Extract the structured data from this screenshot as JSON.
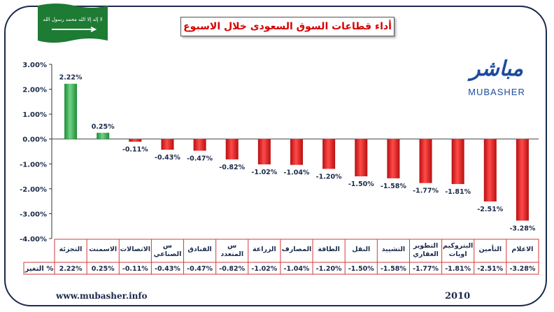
{
  "title": "أداء قطاعات السوق السعودى خلال الاسبوع",
  "brand": {
    "arabic": "مباشر",
    "english": "MUBASHER"
  },
  "flag": {
    "script": "لا إله إلا الله محمد رسول الله",
    "color": "#1d7b33"
  },
  "footer": {
    "website": "www.mubasher.info",
    "year": "2010"
  },
  "table": {
    "row_header": "التغير %"
  },
  "colors": {
    "positive": "#2fa84a",
    "negative": "#e11b1b",
    "title": "#d60000"
  },
  "chart_data": {
    "type": "bar",
    "categories": [
      "التجزئة",
      "الاسمنت",
      "الاتصالات",
      "س الصناعي",
      "الفنادق",
      "س المتعدد",
      "الزراعة",
      "المصارف",
      "الطاقة",
      "النقل",
      "التشييد",
      "التطوير العقاري",
      "البتروكيماويات",
      "التأمين",
      "الاعلام"
    ],
    "category_lines": [
      [
        "التجزئة"
      ],
      [
        "الاسمنت"
      ],
      [
        "الاتصالات"
      ],
      [
        "س",
        "الصناعي"
      ],
      [
        "الفنادق"
      ],
      [
        "س",
        "المتعدد"
      ],
      [
        "الزراعة"
      ],
      [
        "المصارف"
      ],
      [
        "الطاقة"
      ],
      [
        "النقل"
      ],
      [
        "التشييد"
      ],
      [
        "التطوير",
        "العقاري"
      ],
      [
        "البتروكيم",
        "اويات"
      ],
      [
        "التأمين"
      ],
      [
        "الاعلام"
      ]
    ],
    "values": [
      2.22,
      0.25,
      -0.11,
      -0.43,
      -0.47,
      -0.82,
      -1.02,
      -1.04,
      -1.2,
      -1.5,
      -1.58,
      -1.77,
      -1.81,
      -2.51,
      -3.28
    ],
    "value_labels": [
      "2.22%",
      "0.25%",
      "-0.11%",
      "-0.43%",
      "-0.47%",
      "-0.82%",
      "-1.02%",
      "-1.04%",
      "-1.20%",
      "-1.50%",
      "-1.58%",
      "-1.77%",
      "-1.81%",
      "-2.51%",
      "-3.28%"
    ],
    "yticks": [
      3,
      2,
      1,
      0,
      -1,
      -2,
      -3,
      -4
    ],
    "ytick_labels": [
      "3.00%",
      "2.00%",
      "1.00%",
      "0.00%",
      "-1.00%",
      "-2.00%",
      "-3.00%",
      "-4.00%"
    ],
    "ylim": [
      -4,
      3
    ],
    "grid": false,
    "legend": "none"
  }
}
